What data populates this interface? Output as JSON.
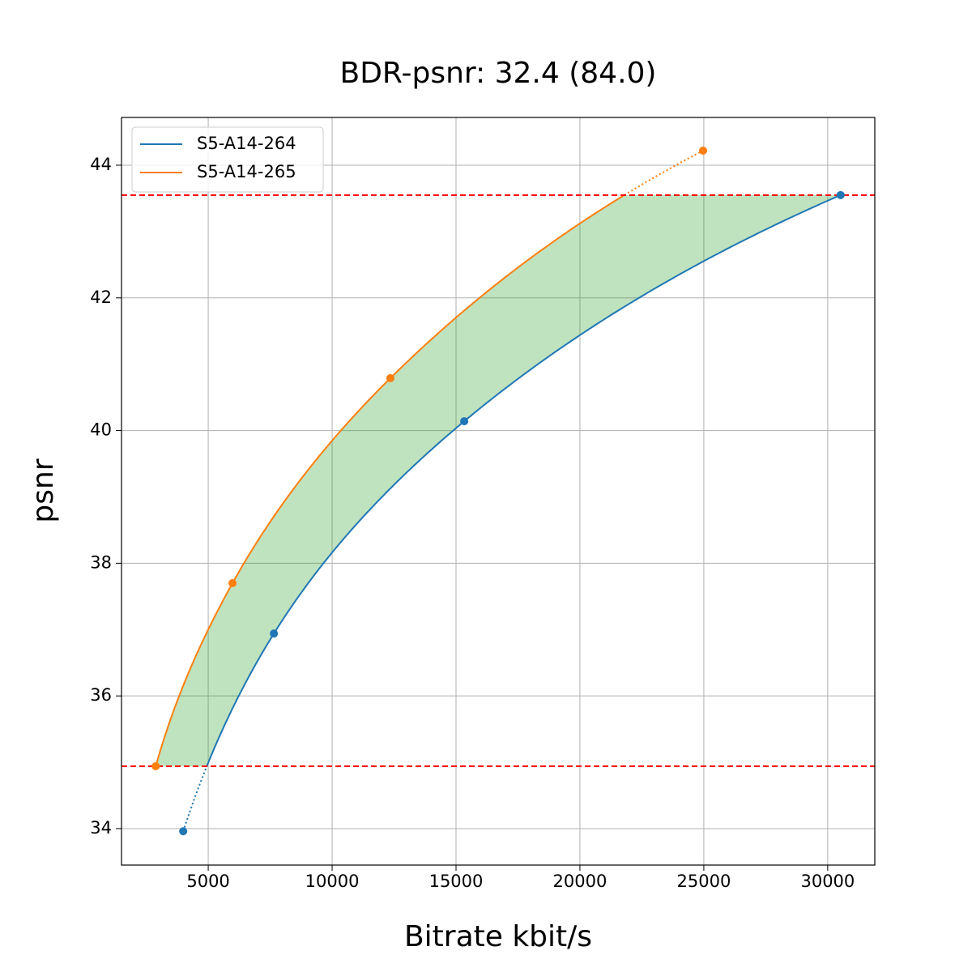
{
  "chart_data": {
    "type": "line",
    "title": "BDR-psnr: 32.4 (84.0)",
    "x_label": "Bitrate kbit/s",
    "y_label": "psnr",
    "series": [
      {
        "name": "S5-A14-264",
        "color": "#1f77b4",
        "x": [
          3990,
          7650,
          15330,
          30520
        ],
        "values": [
          33.96,
          36.94,
          40.14,
          43.55
        ]
      },
      {
        "name": "S5-A14-265",
        "color": "#ff7f0e",
        "x": [
          2880,
          5980,
          12350,
          24970
        ],
        "values": [
          34.94,
          37.7,
          40.79,
          44.22
        ]
      }
    ],
    "hlines": [
      34.94,
      43.55
    ],
    "hline_color": "#ff0000",
    "fill_color": "#2ca02c",
    "xlim": [
      1500,
      31900
    ],
    "ylim": [
      33.45,
      44.72
    ],
    "xticks": [
      5000,
      10000,
      15000,
      20000,
      25000,
      30000
    ],
    "yticks": [
      34,
      36,
      38,
      40,
      42,
      44
    ],
    "grid": true,
    "legend": "upper-left"
  }
}
